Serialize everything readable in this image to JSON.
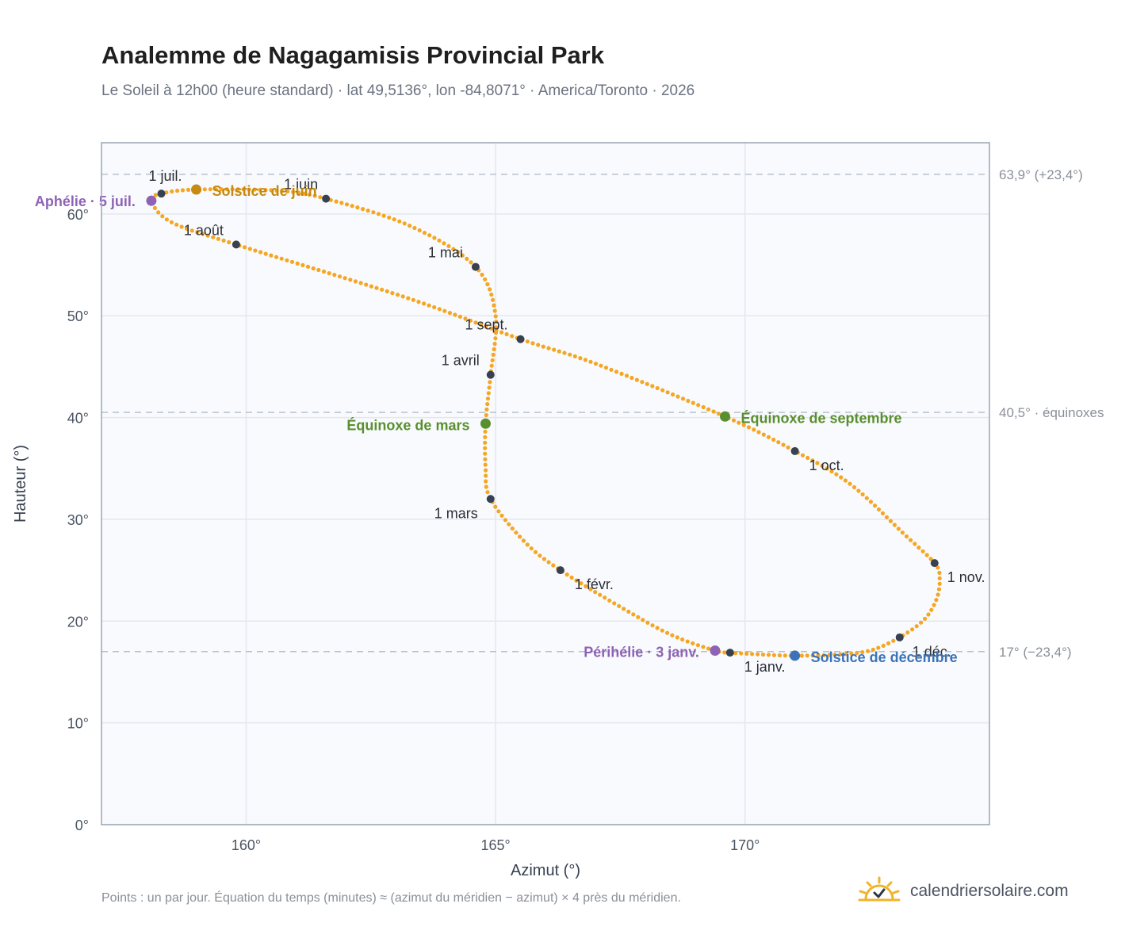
{
  "title": "Analemme de Nagagamisis Provincial Park",
  "subtitle": "Le Soleil à 12h00 (heure standard) · lat 49,5136°, lon -84,8071° · America/Toronto · 2026",
  "footnote": "Points : un par jour. Équation du temps (minutes) ≈ (azimut du méridien − azimut) × 4 près du méridien.",
  "brand": {
    "text": "calendriersolaire.com",
    "icon": "sun-calendar-icon"
  },
  "colors": {
    "curve": "#f5a623",
    "month_point": "#374151",
    "solstice_june": "#c68a12",
    "solstice_december": "#3b73b9",
    "equinox": "#5a8f2e",
    "apsis": "#8e63b5",
    "reference_line": "#b8c2cf",
    "plot_background": "#f8fafd",
    "grid": "#e3e8ef",
    "frame": "#9aa5b4"
  },
  "chart_data": {
    "type": "scatter",
    "title": "Analemme de Nagagamisis Provincial Park",
    "xlabel": "Azimut (°)",
    "ylabel": "Hauteur (°)",
    "xlim": [
      157.1,
      174.9
    ],
    "ylim": [
      0,
      67
    ],
    "grid": true,
    "x_ticks": [
      160,
      165,
      170
    ],
    "x_tick_labels": [
      "160°",
      "165°",
      "170°"
    ],
    "y_ticks": [
      0,
      10,
      20,
      30,
      40,
      50,
      60
    ],
    "y_tick_labels": [
      "0°",
      "10°",
      "20°",
      "30°",
      "40°",
      "50°",
      "60°"
    ],
    "reference_lines": [
      {
        "y": 63.9,
        "label": "63,9° (+23,4°)"
      },
      {
        "y": 40.5,
        "label": "40,5° · équinoxes"
      },
      {
        "y": 17.0,
        "label": "17° (−23,4°)"
      }
    ],
    "analemma_path": [
      [
        169.7,
        16.9
      ],
      [
        170.4,
        16.7
      ],
      [
        171.0,
        16.6
      ],
      [
        171.8,
        16.7
      ],
      [
        172.5,
        17.1
      ],
      [
        173.1,
        18.4
      ],
      [
        173.6,
        20.2
      ],
      [
        173.85,
        22.3
      ],
      [
        173.9,
        24.3
      ],
      [
        173.8,
        25.7
      ],
      [
        173.2,
        28.5
      ],
      [
        172.1,
        33.5
      ],
      [
        171.0,
        36.7
      ],
      [
        169.6,
        40.1
      ],
      [
        167.0,
        45.3
      ],
      [
        165.5,
        47.7
      ],
      [
        163.2,
        51.8
      ],
      [
        159.8,
        57.0
      ],
      [
        158.5,
        59.2
      ],
      [
        158.1,
        61.3
      ],
      [
        158.3,
        62.0
      ],
      [
        159.0,
        62.4
      ],
      [
        160.6,
        62.3
      ],
      [
        161.6,
        61.5
      ],
      [
        163.3,
        58.8
      ],
      [
        164.6,
        54.8
      ],
      [
        165.0,
        50.0
      ],
      [
        164.9,
        44.2
      ],
      [
        164.8,
        39.4
      ],
      [
        164.8,
        35.0
      ],
      [
        164.9,
        32.0
      ],
      [
        165.6,
        27.7
      ],
      [
        166.3,
        25.0
      ],
      [
        167.5,
        21.4
      ],
      [
        168.5,
        18.7
      ],
      [
        169.4,
        17.1
      ],
      [
        169.7,
        16.9
      ]
    ],
    "month_points": [
      {
        "label": "1 janv.",
        "x": 169.7,
        "y": 16.9
      },
      {
        "label": "1 févr.",
        "x": 166.3,
        "y": 25.0
      },
      {
        "label": "1 mars",
        "x": 164.9,
        "y": 32.0
      },
      {
        "label": "1 avril",
        "x": 164.9,
        "y": 44.2
      },
      {
        "label": "1 mai",
        "x": 164.6,
        "y": 54.8
      },
      {
        "label": "1 juin",
        "x": 161.6,
        "y": 61.5
      },
      {
        "label": "1 juil.",
        "x": 158.3,
        "y": 62.0
      },
      {
        "label": "1 août",
        "x": 159.8,
        "y": 57.0
      },
      {
        "label": "1 sept.",
        "x": 165.5,
        "y": 47.7
      },
      {
        "label": "1 oct.",
        "x": 171.0,
        "y": 36.7
      },
      {
        "label": "1 nov.",
        "x": 173.8,
        "y": 25.7
      },
      {
        "label": "1 déc.",
        "x": 173.1,
        "y": 18.4
      }
    ],
    "events": [
      {
        "label": "Solstice de juin",
        "x": 159.0,
        "y": 62.4,
        "kind": "solstice_june"
      },
      {
        "label": "Solstice de décembre",
        "x": 171.0,
        "y": 16.6,
        "kind": "solstice_december"
      },
      {
        "label": "Équinoxe de mars",
        "x": 164.8,
        "y": 39.4,
        "kind": "equinox"
      },
      {
        "label": "Équinoxe de septembre",
        "x": 169.6,
        "y": 40.1,
        "kind": "equinox"
      },
      {
        "label": "Aphélie · 5 juil.",
        "x": 158.1,
        "y": 61.3,
        "kind": "apsis"
      },
      {
        "label": "Périhélie · 3 janv.",
        "x": 169.4,
        "y": 17.1,
        "kind": "apsis"
      }
    ]
  }
}
